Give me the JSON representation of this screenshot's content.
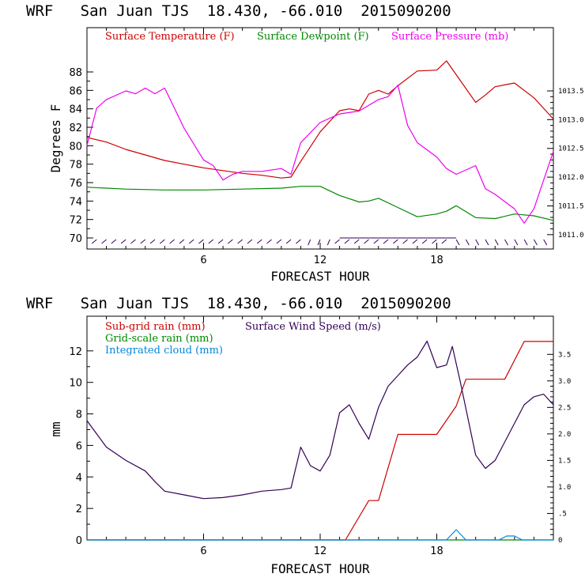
{
  "chart_data": [
    {
      "type": "line",
      "title": "WRF   San Juan TJS  18.430, -66.010  2015090200",
      "xlabel": "FORECAST HOUR",
      "ylabel": "Degrees F",
      "xlim": [
        0,
        24
      ],
      "ylim": [
        68.8,
        92.8
      ],
      "y2lim": [
        1010.75,
        1014.6
      ],
      "x_ticks": [
        6,
        12,
        18
      ],
      "y_ticks": [
        70,
        72,
        74,
        76,
        78,
        80,
        82,
        84,
        86,
        88
      ],
      "y2_ticks": [
        1011.0,
        1011.5,
        1012.0,
        1012.5,
        1013.0,
        1013.5
      ],
      "y2_tick_labels": [
        "1011.0",
        "1011.5",
        "1012.0",
        "1012.5",
        "1013.0",
        "1013.5"
      ],
      "series": [
        {
          "name": "Surface Temperature (F)",
          "color": "#cc0000",
          "axis": "left",
          "points": [
            [
              0,
              80.9
            ],
            [
              1,
              80.4
            ],
            [
              2,
              79.6
            ],
            [
              3,
              79.0
            ],
            [
              4,
              78.4
            ],
            [
              5,
              78.0
            ],
            [
              6,
              77.6
            ],
            [
              7,
              77.3
            ],
            [
              8,
              77.0
            ],
            [
              9,
              76.8
            ],
            [
              10,
              76.5
            ],
            [
              10.5,
              76.6
            ],
            [
              11,
              78.3
            ],
            [
              12,
              81.5
            ],
            [
              13,
              83.8
            ],
            [
              13.5,
              84.0
            ],
            [
              14,
              83.8
            ],
            [
              14.5,
              85.6
            ],
            [
              15,
              86.0
            ],
            [
              15.5,
              85.6
            ],
            [
              16,
              86.5
            ],
            [
              17,
              88.1
            ],
            [
              18,
              88.2
            ],
            [
              18.5,
              89.2
            ],
            [
              19,
              87.7
            ],
            [
              20,
              84.7
            ],
            [
              20.5,
              85.5
            ],
            [
              21,
              86.4
            ],
            [
              22,
              86.8
            ],
            [
              23,
              85.2
            ],
            [
              24,
              82.9
            ]
          ]
        },
        {
          "name": "Surface Dewpoint (F)",
          "color": "#008800",
          "axis": "left",
          "points": [
            [
              0,
              75.5
            ],
            [
              2,
              75.3
            ],
            [
              4,
              75.2
            ],
            [
              6,
              75.2
            ],
            [
              8,
              75.3
            ],
            [
              10,
              75.4
            ],
            [
              11,
              75.6
            ],
            [
              12,
              75.6
            ],
            [
              13,
              74.6
            ],
            [
              14,
              73.9
            ],
            [
              14.5,
              74.0
            ],
            [
              15,
              74.3
            ],
            [
              16,
              73.3
            ],
            [
              17,
              72.3
            ],
            [
              18,
              72.6
            ],
            [
              18.5,
              72.9
            ],
            [
              19,
              73.5
            ],
            [
              20,
              72.2
            ],
            [
              21,
              72.1
            ],
            [
              22,
              72.6
            ],
            [
              23,
              72.4
            ],
            [
              24,
              71.9
            ]
          ]
        },
        {
          "name": "Surface Pressure (mb)",
          "color": "#ee00ee",
          "axis": "right",
          "points": [
            [
              0,
              1012.55
            ],
            [
              0.5,
              1013.2
            ],
            [
              1,
              1013.35
            ],
            [
              2,
              1013.5
            ],
            [
              2.5,
              1013.45
            ],
            [
              3,
              1013.55
            ],
            [
              3.5,
              1013.45
            ],
            [
              4,
              1013.55
            ],
            [
              4.5,
              1013.2
            ],
            [
              5,
              1012.85
            ],
            [
              6,
              1012.3
            ],
            [
              6.5,
              1012.2
            ],
            [
              7,
              1011.95
            ],
            [
              7.5,
              1012.05
            ],
            [
              8,
              1012.1
            ],
            [
              9,
              1012.1
            ],
            [
              10,
              1012.15
            ],
            [
              10.5,
              1012.05
            ],
            [
              11,
              1012.6
            ],
            [
              12,
              1012.95
            ],
            [
              13,
              1013.1
            ],
            [
              14,
              1013.15
            ],
            [
              15,
              1013.35
            ],
            [
              15.5,
              1013.4
            ],
            [
              16,
              1013.6
            ],
            [
              16.5,
              1012.9
            ],
            [
              17,
              1012.6
            ],
            [
              18,
              1012.35
            ],
            [
              18.5,
              1012.15
            ],
            [
              19,
              1012.05
            ],
            [
              20,
              1012.2
            ],
            [
              20.5,
              1011.8
            ],
            [
              21,
              1011.7
            ],
            [
              22,
              1011.45
            ],
            [
              22.5,
              1011.2
            ],
            [
              23,
              1011.45
            ],
            [
              24,
              1012.45
            ]
          ]
        }
      ],
      "wind_barbs": {
        "color": "#330055",
        "y": 70
      }
    },
    {
      "type": "line",
      "title": "WRF   San Juan TJS  18.430, -66.010  2015090200",
      "xlabel": "FORECAST HOUR",
      "ylabel": "mm",
      "xlim": [
        0,
        24
      ],
      "ylim": [
        0,
        14.2
      ],
      "y2lim": [
        0,
        4.22
      ],
      "x_ticks": [
        6,
        12,
        18
      ],
      "y_ticks": [
        0,
        2,
        4,
        6,
        8,
        10,
        12
      ],
      "y2_ticks": [
        0,
        0.5,
        1.0,
        1.5,
        2.0,
        2.5,
        3.0,
        3.5
      ],
      "y2_tick_labels": [
        "0",
        ".5",
        "1.0",
        "1.5",
        "2.0",
        "2.5",
        "3.0",
        "3.5"
      ],
      "series": [
        {
          "name": "Sub-grid rain (mm)",
          "color": "#cc0000",
          "axis": "left",
          "points": [
            [
              0,
              0
            ],
            [
              13.3,
              0
            ],
            [
              14.5,
              2.5
            ],
            [
              15,
              2.5
            ],
            [
              16,
              6.7
            ],
            [
              17,
              6.7
            ],
            [
              18,
              6.7
            ],
            [
              19,
              8.5
            ],
            [
              19.5,
              10.2
            ],
            [
              20,
              10.2
            ],
            [
              21,
              10.2
            ],
            [
              21.5,
              10.2
            ],
            [
              22.5,
              12.6
            ],
            [
              24,
              12.6
            ]
          ]
        },
        {
          "name": "Grid-scale rain (mm)",
          "color": "#008800",
          "axis": "left",
          "points": [
            [
              0,
              0
            ],
            [
              24,
              0
            ]
          ]
        },
        {
          "name": "Integrated cloud (mm)",
          "color": "#0088dd",
          "axis": "left",
          "points": [
            [
              0,
              0
            ],
            [
              18.5,
              0
            ],
            [
              19,
              0.65
            ],
            [
              19.5,
              0
            ],
            [
              21.2,
              0
            ],
            [
              21.6,
              0.25
            ],
            [
              22,
              0.25
            ],
            [
              22.4,
              0
            ],
            [
              24,
              0
            ]
          ]
        },
        {
          "name": "Surface Wind Speed (m/s)",
          "color": "#330055",
          "axis": "right",
          "points": [
            [
              0,
              2.25
            ],
            [
              0.5,
              2.0
            ],
            [
              1,
              1.75
            ],
            [
              2,
              1.5
            ],
            [
              3,
              1.3
            ],
            [
              3.5,
              1.1
            ],
            [
              4,
              0.92
            ],
            [
              5,
              0.85
            ],
            [
              6,
              0.78
            ],
            [
              7,
              0.8
            ],
            [
              8,
              0.85
            ],
            [
              9,
              0.92
            ],
            [
              10,
              0.95
            ],
            [
              10.5,
              0.98
            ],
            [
              11,
              1.75
            ],
            [
              11.5,
              1.4
            ],
            [
              12,
              1.3
            ],
            [
              12.5,
              1.6
            ],
            [
              13,
              2.4
            ],
            [
              13.5,
              2.55
            ],
            [
              14,
              2.2
            ],
            [
              14.5,
              1.9
            ],
            [
              15,
              2.5
            ],
            [
              15.5,
              2.9
            ],
            [
              16,
              3.1
            ],
            [
              16.5,
              3.3
            ],
            [
              17,
              3.45
            ],
            [
              17.5,
              3.75
            ],
            [
              18,
              3.25
            ],
            [
              18.5,
              3.3
            ],
            [
              18.8,
              3.65
            ],
            [
              19.2,
              3.0
            ],
            [
              20,
              1.6
            ],
            [
              20.5,
              1.35
            ],
            [
              21,
              1.5
            ],
            [
              22,
              2.2
            ],
            [
              22.5,
              2.55
            ],
            [
              23,
              2.7
            ],
            [
              23.5,
              2.75
            ],
            [
              24,
              2.55
            ]
          ]
        }
      ]
    }
  ]
}
